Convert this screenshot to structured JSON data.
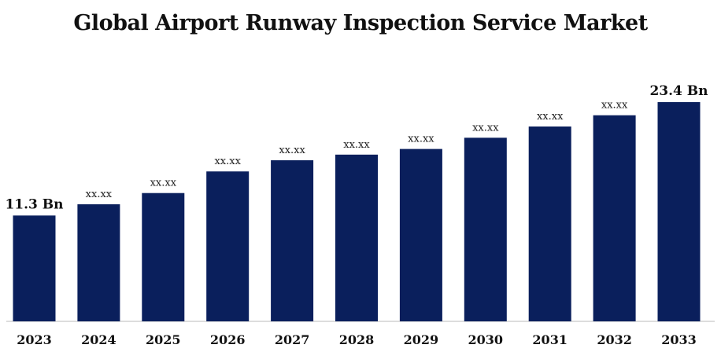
{
  "chart_data": {
    "type": "bar",
    "title": "Global Airport Runway Inspection Service Market",
    "xlabel": "",
    "ylabel": "",
    "categories": [
      "2023",
      "2024",
      "2025",
      "2026",
      "2027",
      "2028",
      "2029",
      "2030",
      "2031",
      "2032",
      "2033"
    ],
    "values": [
      11.3,
      12.5,
      13.7,
      16.0,
      17.2,
      17.8,
      18.4,
      19.6,
      20.8,
      22.0,
      23.4
    ],
    "data_labels": [
      "11.3 Bn",
      "XX.XX",
      "XX.XX",
      "XX.XX",
      "XX.XX",
      "XX.XX",
      "XX.XX",
      "XX.XX",
      "XX.XX",
      "XX.XX",
      "23.4 Bn"
    ],
    "ylim": [
      0,
      24
    ],
    "grid": false,
    "legend": "none",
    "colors": {
      "bar": "#0a1f5c",
      "axis": "#bbbbbb",
      "text": "#111111"
    }
  }
}
